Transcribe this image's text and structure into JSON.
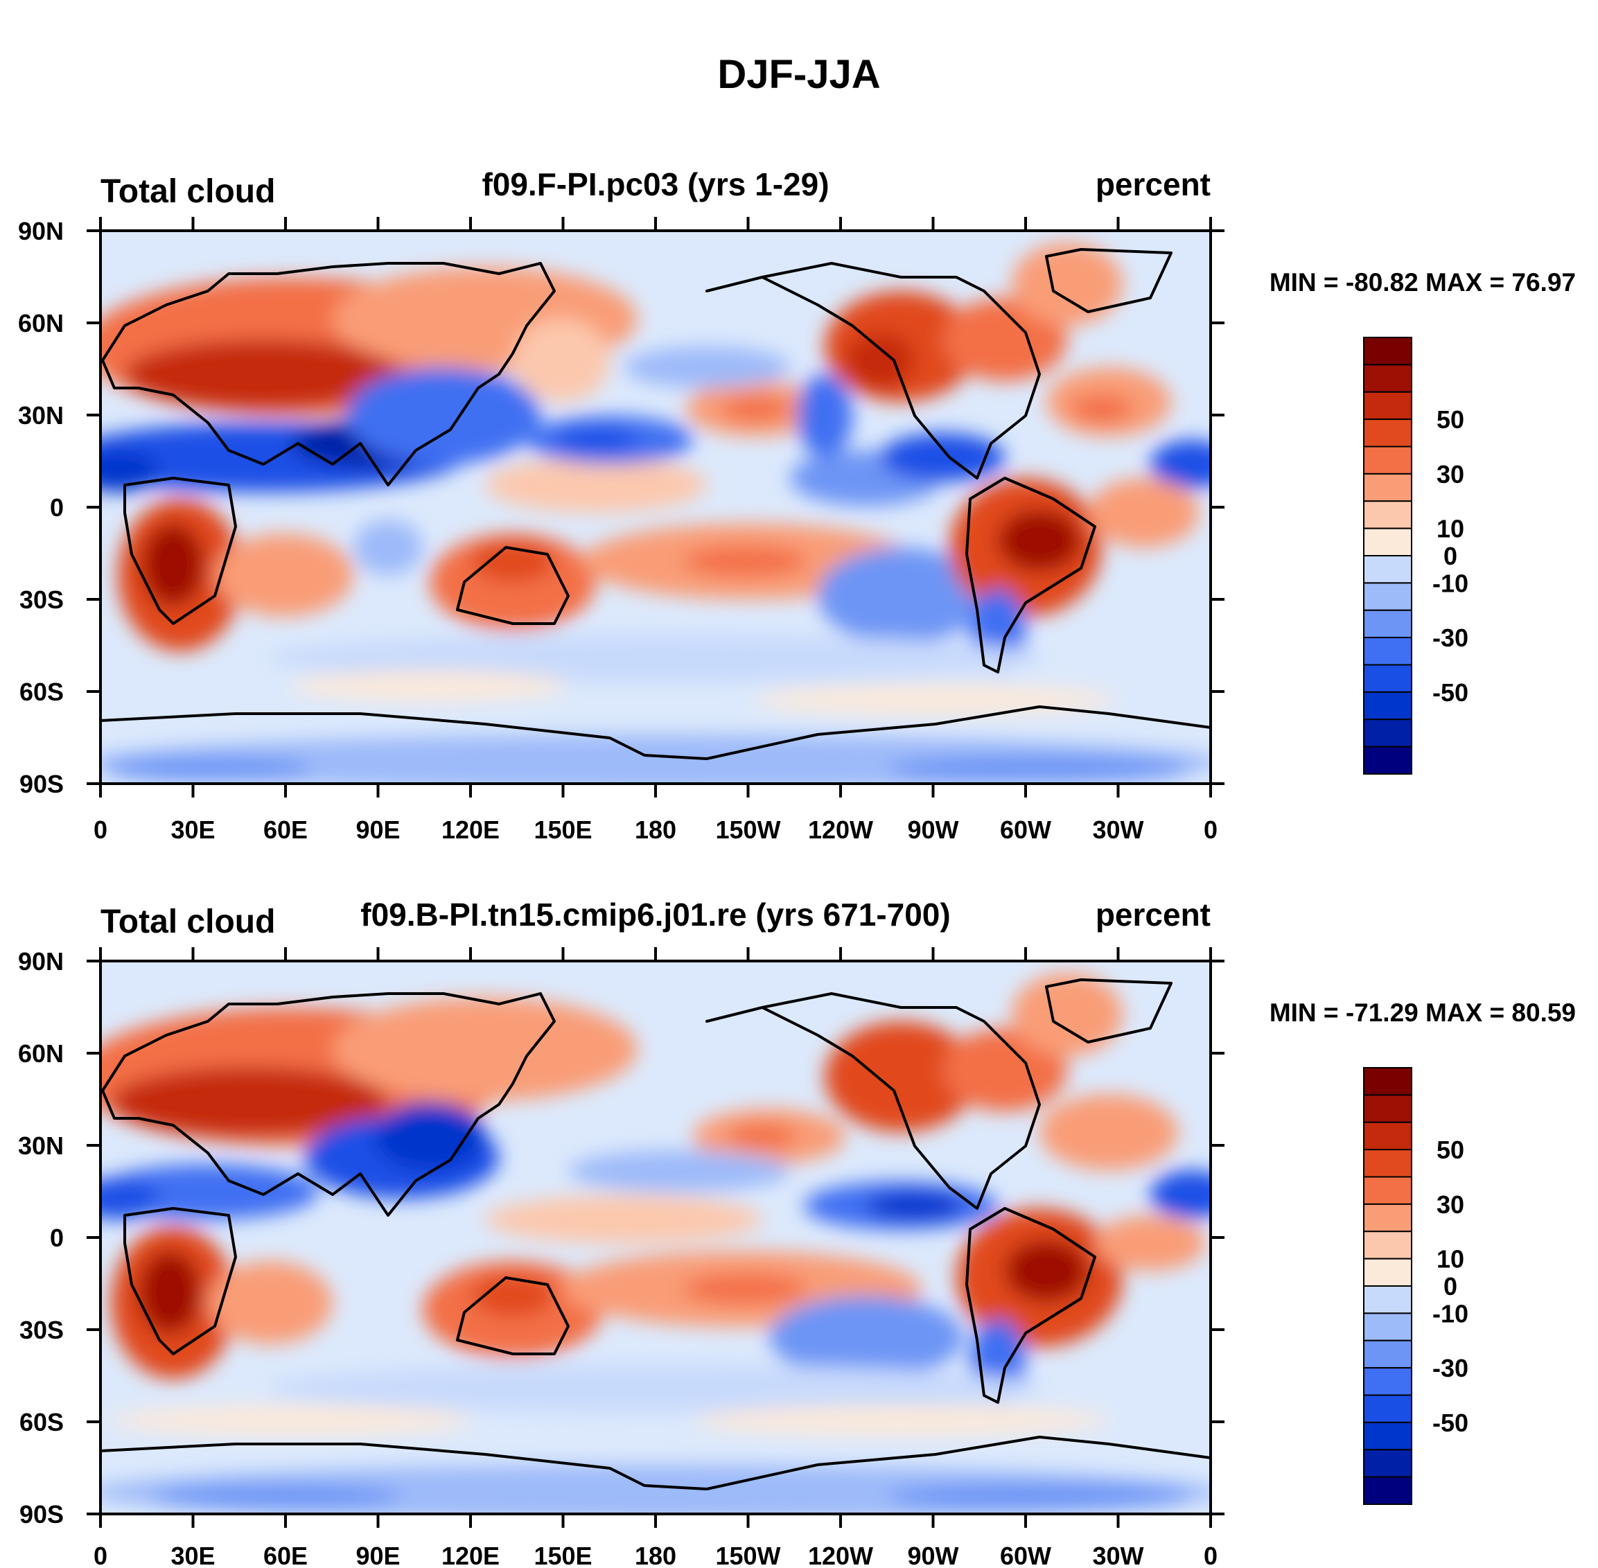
{
  "figure": {
    "title": "DJF-JJA"
  },
  "colorbar": {
    "colors": [
      "#00007f",
      "#0020a8",
      "#0036cc",
      "#1a4fe6",
      "#3f6ff2",
      "#6d95f5",
      "#9dbaf9",
      "#c8dafc",
      "#fbe9da",
      "#fcc8ad",
      "#f99d77",
      "#f37046",
      "#e14a1f",
      "#c52a0c",
      "#9e1004",
      "#7a0000"
    ],
    "labels": [
      "-50",
      "-30",
      "-10",
      "0",
      "10",
      "30",
      "50"
    ],
    "label_levels": [
      -50,
      -30,
      -10,
      0,
      10,
      30,
      50
    ]
  },
  "lon_ticks": [
    "0",
    "30E",
    "60E",
    "90E",
    "120E",
    "150E",
    "180",
    "150W",
    "120W",
    "90W",
    "60W",
    "30W",
    "0"
  ],
  "lat_ticks": [
    "90N",
    "60N",
    "30N",
    "0",
    "30S",
    "60S",
    "90S"
  ],
  "panels": [
    {
      "left_label": "Total cloud",
      "center_label": "f09.F-PI.pc03 (yrs 1-29)",
      "right_label": "percent",
      "min_max": "MIN = -80.82 MAX =  76.97"
    },
    {
      "left_label": "Total cloud",
      "center_label": "f09.B-PI.tn15.cmip6.j01.re (yrs 671-700)",
      "right_label": "percent",
      "min_max": "MIN = -71.29 MAX =  80.59"
    }
  ]
}
